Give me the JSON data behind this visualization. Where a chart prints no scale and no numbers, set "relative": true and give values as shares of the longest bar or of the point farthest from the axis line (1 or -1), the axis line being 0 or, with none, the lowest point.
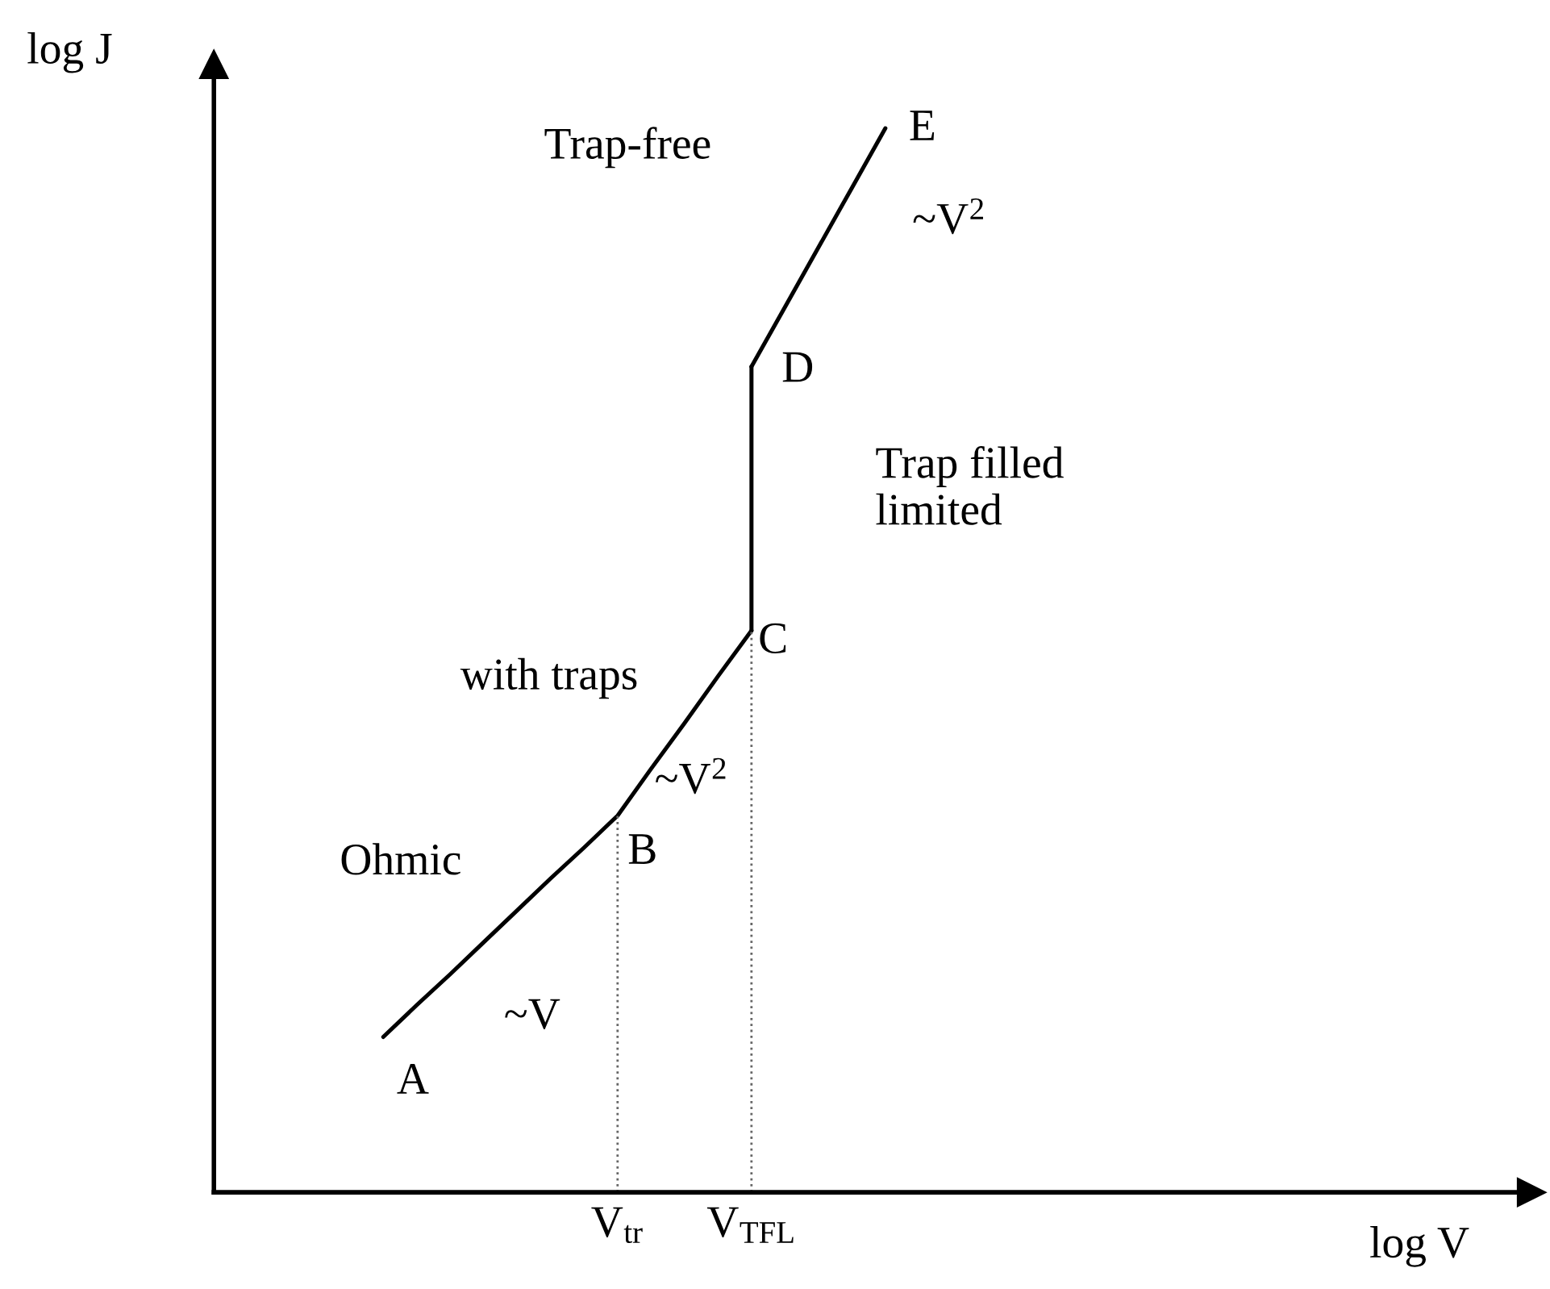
{
  "chart_data": {
    "type": "line",
    "relative": true,
    "xlabel": "log V",
    "ylabel": "log J",
    "ylim": [
      0,
      1.06
    ],
    "tick_labels": "x",
    "grid": false,
    "legend": false,
    "marker": "none",
    "categories": [
      null,
      null,
      null,
      null,
      null,
      null,
      null,
      null,
      null,
      null,
      null,
      null,
      "V$_{tr}$",
      null,
      null,
      null,
      "V$_{TFL}$",
      null,
      null,
      null,
      null,
      null,
      null,
      null,
      null,
      null,
      null,
      null,
      null,
      null,
      null,
      null,
      null,
      null,
      null,
      null,
      null,
      null,
      null,
      null
    ],
    "series": [
      {
        "color": "#000000",
        "line_style": "solid",
        "values": [
          null,
          null,
          null,
          null,
          null,
          0.146,
          0.176,
          0.205,
          0.235,
          0.265,
          0.295,
          0.324,
          0.354,
          0.398,
          0.441,
          0.485,
          0.528,
          null,
          null,
          null,
          null,
          null,
          null,
          null,
          null,
          null,
          null,
          null,
          null,
          null,
          null,
          null,
          null,
          null,
          null,
          null,
          null,
          null,
          null,
          null
        ]
      },
      {
        "color": "#000000",
        "line_style": "solid",
        "x": [
          "V$_{TFL}$",
          "V$_{TFL}$"
        ],
        "values": [
          0.528,
          0.776
        ]
      },
      {
        "color": "#000000",
        "line_style": "solid",
        "values": [
          null,
          null,
          null,
          null,
          null,
          null,
          null,
          null,
          null,
          null,
          null,
          null,
          null,
          null,
          null,
          null,
          0.776,
          0.832,
          0.888,
          0.944,
          1,
          null,
          null,
          null,
          null,
          null,
          null,
          null,
          null,
          null,
          null,
          null,
          null,
          null,
          null,
          null,
          null,
          null,
          null,
          null
        ]
      },
      {
        "color": "#666666",
        "line_style": "dotted",
        "x": [
          "V$_{tr}$",
          "V$_{tr}$"
        ],
        "values": [
          0,
          0.354
        ]
      },
      {
        "color": "#666666",
        "line_style": "dotted",
        "x": [
          "V$_{TFL}$",
          "V$_{TFL}$"
        ],
        "values": [
          0,
          0.528
        ]
      }
    ],
    "annotations": [
      "A",
      "B",
      "C",
      "D",
      "E",
      "~V",
      "~V$^{2}$",
      "~V$^{2}$",
      "Ohmic",
      "with traps",
      "Trap filled\nlimited",
      "Trap-free"
    ]
  }
}
